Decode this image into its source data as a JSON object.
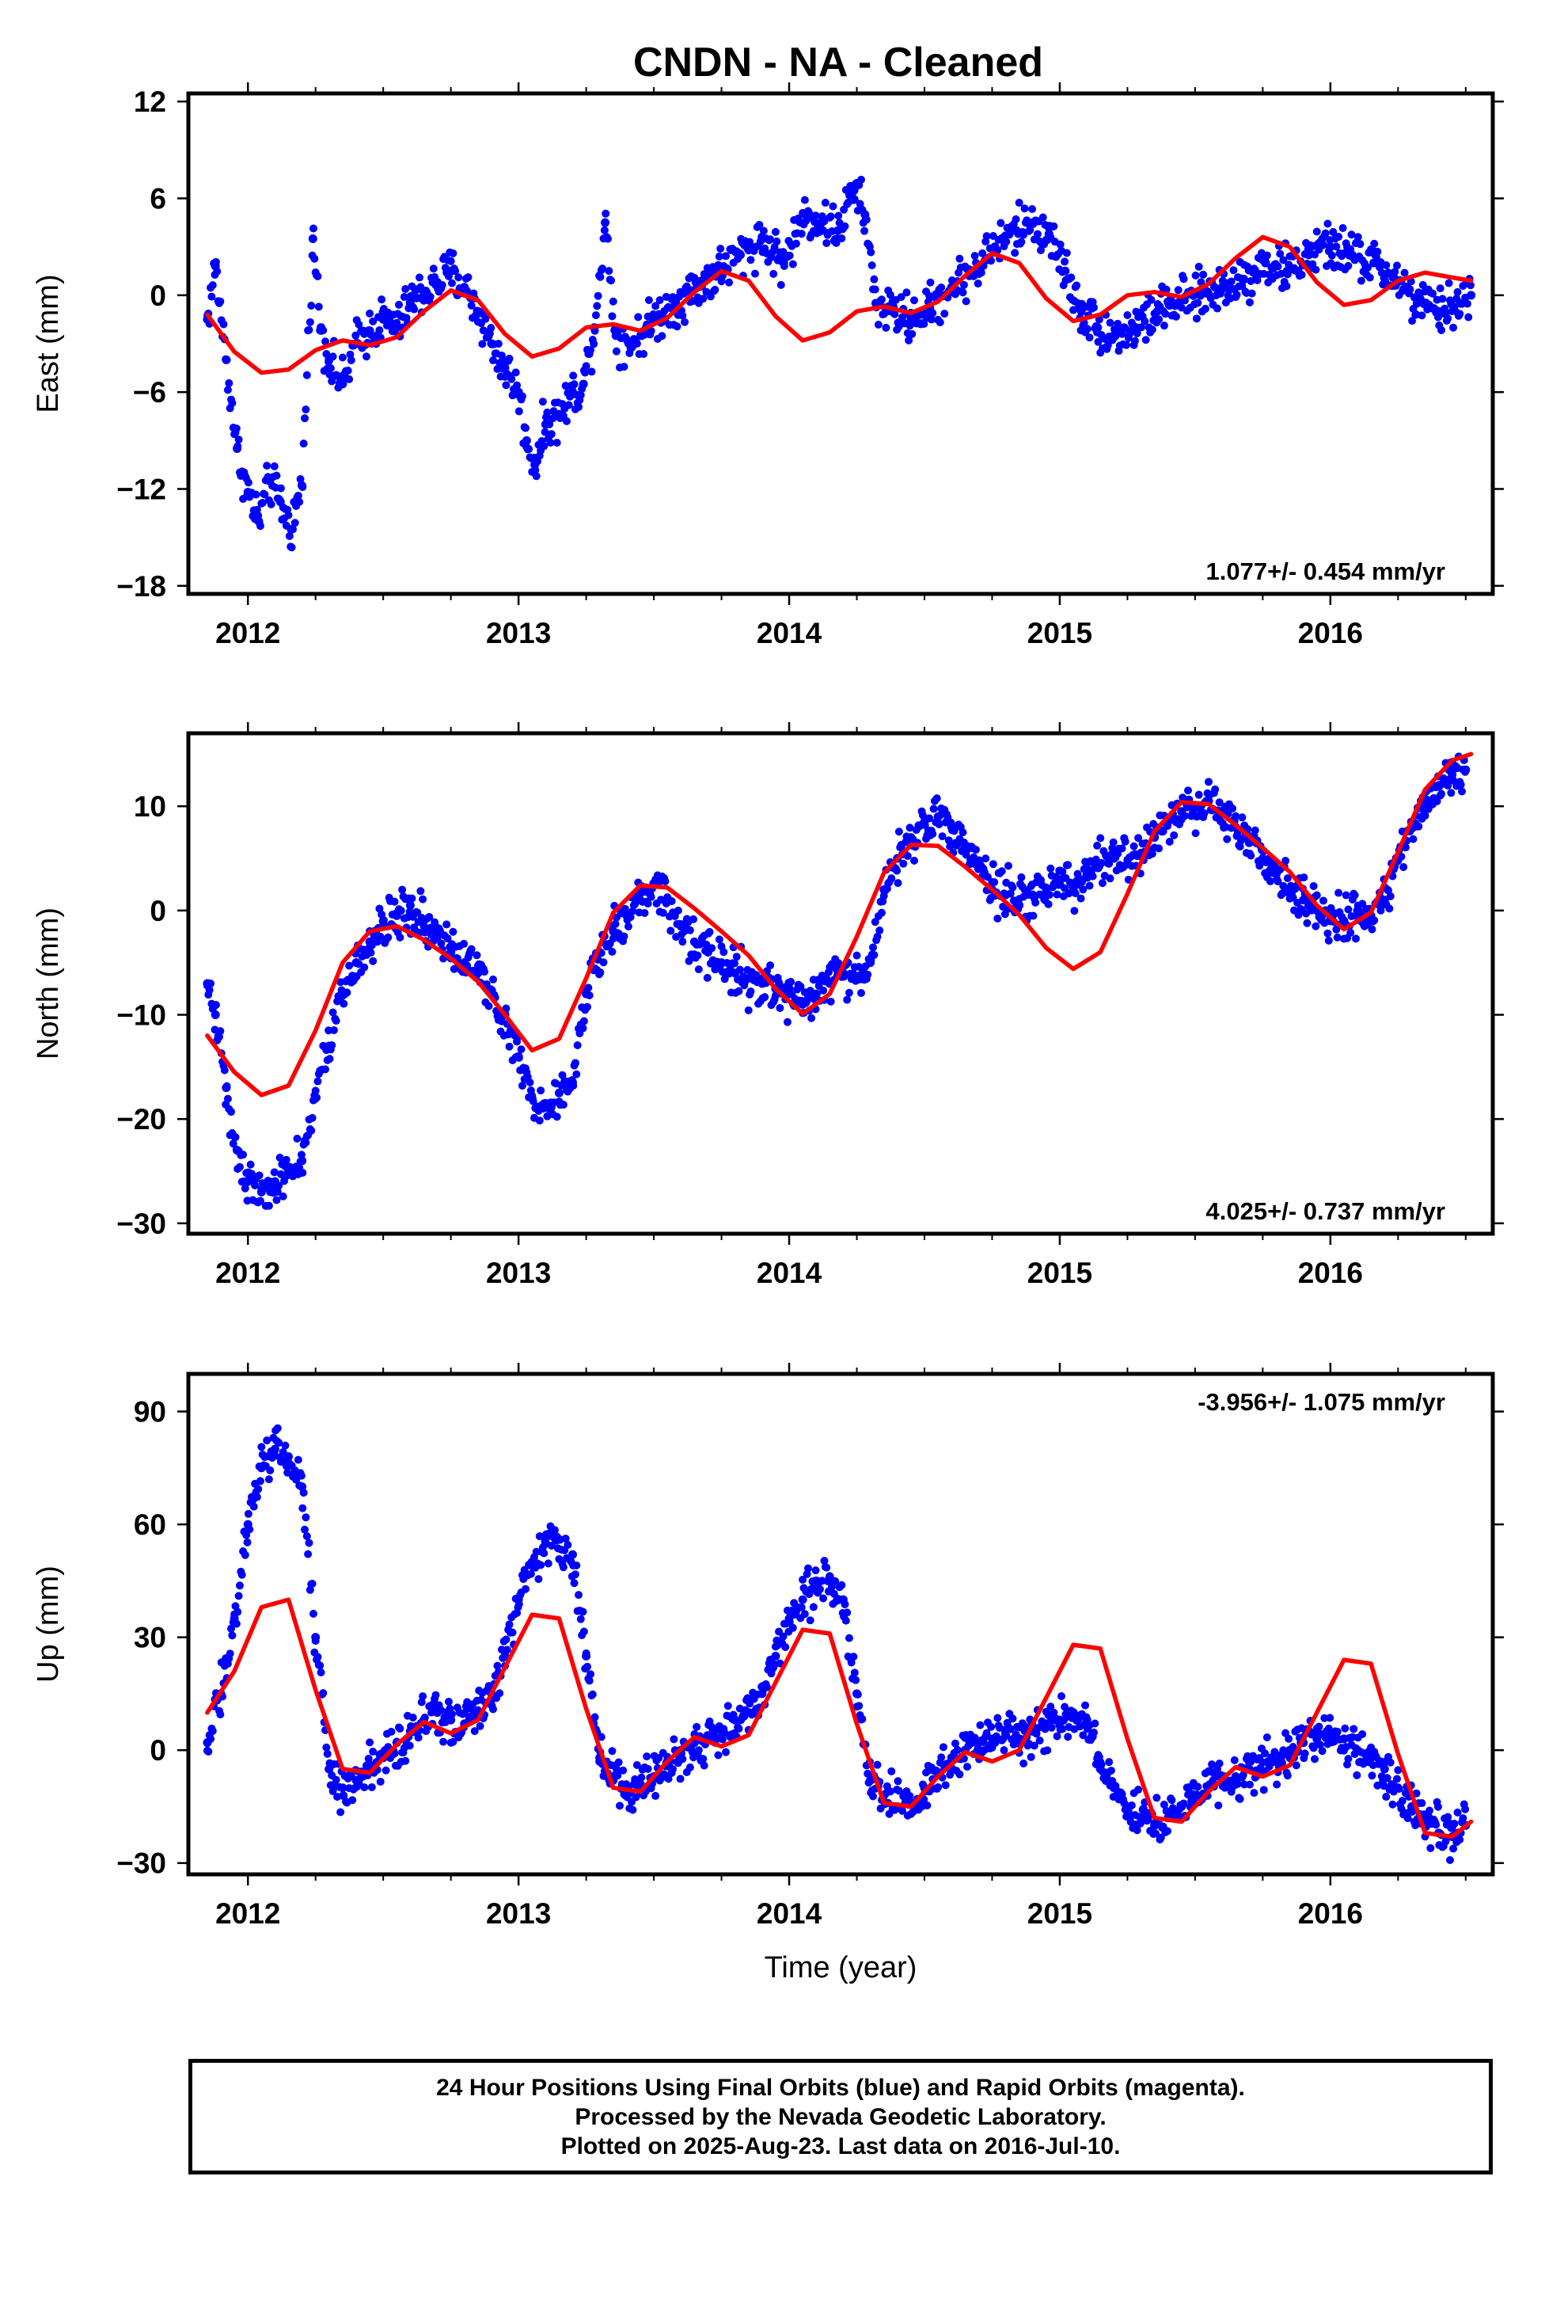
{
  "title": "CNDN  - NA - Cleaned",
  "footer": {
    "line1": "24 Hour Positions Using Final Orbits (blue) and Rapid Orbits (magenta).",
    "line2": "Processed by the Nevada Geodetic Laboratory.",
    "line3": "Plotted on 2025-Aug-23. Last data on 2016-Jul-10."
  },
  "colors": {
    "observations": "#0000ff",
    "model": "#ff0000",
    "frame": "#000000"
  },
  "chart_data": [
    {
      "type": "scatter",
      "component": "East",
      "ylabel": "East (mm)",
      "xlabel": "",
      "xlim": [
        2011.78,
        2016.6
      ],
      "ylim": [
        -18.5,
        12.5
      ],
      "xticks": [
        2012,
        2013,
        2014,
        2015,
        2016
      ],
      "xtick_labels": [
        "2012",
        "2013",
        "2014",
        "2015",
        "2016"
      ],
      "yticks": [
        -18,
        -12,
        -6,
        0,
        6,
        12
      ],
      "ytick_labels": [
        "−18",
        "−12",
        "−6",
        "0",
        "6",
        "12"
      ],
      "rate": "1.077+/- 0.454 mm/yr",
      "rate_position": "bottom-right",
      "series": [
        {
          "role": "observations",
          "style": "dots",
          "x": [
            2011.85,
            2011.88,
            2011.92,
            2011.96,
            2012.0,
            2012.04,
            2012.08,
            2012.12,
            2012.16,
            2012.2,
            2012.24,
            2012.27,
            2012.3,
            2012.35,
            2012.4,
            2012.45,
            2012.5,
            2012.55,
            2012.6,
            2012.65,
            2012.7,
            2012.75,
            2012.8,
            2012.85,
            2012.9,
            2012.95,
            2013.0,
            2013.03,
            2013.06,
            2013.1,
            2013.15,
            2013.2,
            2013.24,
            2013.28,
            2013.32,
            2013.36,
            2013.42,
            2013.5,
            2013.58,
            2013.66,
            2013.74,
            2013.82,
            2013.9,
            2013.98,
            2014.06,
            2014.12,
            2014.18,
            2014.24,
            2014.28,
            2014.32,
            2014.38,
            2014.45,
            2014.52,
            2014.6,
            2014.68,
            2014.76,
            2014.84,
            2014.9,
            2014.96,
            2015.02,
            2015.08,
            2015.14,
            2015.2,
            2015.28,
            2015.36,
            2015.44,
            2015.52,
            2015.6,
            2015.68,
            2015.76,
            2015.84,
            2015.92,
            2016.0,
            2016.08,
            2016.16,
            2016.24,
            2016.32,
            2016.4,
            2016.48,
            2016.52
          ],
          "y": [
            -1.5,
            1.8,
            -4.0,
            -9.5,
            -12.2,
            -14.0,
            -11.5,
            -12.8,
            -14.5,
            -11.8,
            3.5,
            -2.0,
            -4.0,
            -5.5,
            -3.0,
            -2.2,
            -1.5,
            -2.0,
            -0.5,
            0.2,
            0.8,
            1.5,
            0.5,
            -1.0,
            -3.0,
            -4.5,
            -6.0,
            -9.0,
            -10.5,
            -8.0,
            -7.5,
            -6.0,
            -5.5,
            -2.0,
            4.5,
            -2.5,
            -3.0,
            -1.5,
            -0.5,
            0.5,
            1.5,
            2.5,
            3.5,
            2.0,
            5.0,
            4.5,
            4.0,
            6.5,
            5.0,
            -0.5,
            -1.0,
            -1.5,
            -0.8,
            0.5,
            1.5,
            3.0,
            4.0,
            4.5,
            3.8,
            1.5,
            -1.0,
            -2.0,
            -2.5,
            -2.0,
            -1.0,
            -0.5,
            0.0,
            0.5,
            1.0,
            2.0,
            1.5,
            2.5,
            3.0,
            2.5,
            2.0,
            1.0,
            -0.5,
            -1.0,
            -0.5,
            0.0
          ]
        },
        {
          "role": "model",
          "style": "line",
          "x": [
            2011.85,
            2011.95,
            2012.05,
            2012.15,
            2012.25,
            2012.35,
            2012.45,
            2012.55,
            2012.65,
            2012.75,
            2012.85,
            2012.95,
            2013.05,
            2013.15,
            2013.25,
            2013.35,
            2013.45,
            2013.55,
            2013.65,
            2013.75,
            2013.85,
            2013.95,
            2014.05,
            2014.15,
            2014.25,
            2014.35,
            2014.45,
            2014.55,
            2014.65,
            2014.75,
            2014.85,
            2014.95,
            2015.05,
            2015.15,
            2015.25,
            2015.35,
            2015.45,
            2015.55,
            2015.65,
            2015.75,
            2015.85,
            2015.95,
            2016.05,
            2016.15,
            2016.25,
            2016.35,
            2016.45,
            2016.52
          ],
          "y": [
            -1.2,
            -3.5,
            -4.8,
            -4.6,
            -3.4,
            -2.8,
            -3.1,
            -2.6,
            -1.0,
            0.3,
            -0.3,
            -2.4,
            -3.8,
            -3.3,
            -2.0,
            -1.8,
            -2.2,
            -1.4,
            0.2,
            1.5,
            0.9,
            -1.3,
            -2.8,
            -2.3,
            -1.0,
            -0.7,
            -1.1,
            -0.4,
            1.2,
            2.6,
            2.0,
            -0.2,
            -1.6,
            -1.2,
            0.0,
            0.2,
            -0.1,
            0.7,
            2.3,
            3.6,
            3.0,
            0.8,
            -0.6,
            -0.3,
            0.9,
            1.4,
            1.1,
            0.9
          ]
        }
      ]
    },
    {
      "type": "scatter",
      "component": "North",
      "ylabel": "North (mm)",
      "xlabel": "",
      "xlim": [
        2011.78,
        2016.6
      ],
      "ylim": [
        -31,
        17
      ],
      "xticks": [
        2012,
        2013,
        2014,
        2015,
        2016
      ],
      "xtick_labels": [
        "2012",
        "2013",
        "2014",
        "2015",
        "2016"
      ],
      "yticks": [
        -30,
        -20,
        -10,
        0,
        10
      ],
      "ytick_labels": [
        "−30",
        "−20",
        "−10",
        "0",
        "10"
      ],
      "rate": "4.025+/- 0.737 mm/yr",
      "rate_position": "bottom-right",
      "series": [
        {
          "role": "observations",
          "style": "dots",
          "x": [
            2011.85,
            2011.88,
            2011.92,
            2011.96,
            2012.0,
            2012.05,
            2012.1,
            2012.15,
            2012.2,
            2012.25,
            2012.3,
            2012.35,
            2012.4,
            2012.45,
            2012.5,
            2012.55,
            2012.6,
            2012.65,
            2012.7,
            2012.75,
            2012.8,
            2012.85,
            2012.9,
            2012.95,
            2013.0,
            2013.05,
            2013.1,
            2013.15,
            2013.2,
            2013.25,
            2013.3,
            2013.35,
            2013.4,
            2013.45,
            2013.5,
            2013.55,
            2013.6,
            2013.65,
            2013.7,
            2013.75,
            2013.8,
            2013.85,
            2013.9,
            2013.95,
            2014.0,
            2014.05,
            2014.1,
            2014.15,
            2014.2,
            2014.25,
            2014.3,
            2014.35,
            2014.4,
            2014.45,
            2014.5,
            2014.55,
            2014.6,
            2014.65,
            2014.7,
            2014.75,
            2014.8,
            2014.85,
            2014.9,
            2014.95,
            2015.0,
            2015.05,
            2015.1,
            2015.15,
            2015.2,
            2015.25,
            2015.3,
            2015.35,
            2015.4,
            2015.45,
            2015.5,
            2015.55,
            2015.6,
            2015.65,
            2015.7,
            2015.75,
            2015.8,
            2015.85,
            2015.9,
            2015.95,
            2016.0,
            2016.05,
            2016.1,
            2016.15,
            2016.2,
            2016.25,
            2016.3,
            2016.35,
            2016.4,
            2016.45,
            2016.5
          ],
          "y": [
            -7.0,
            -10.0,
            -17.0,
            -23.0,
            -26.0,
            -27.0,
            -26.0,
            -25.0,
            -24.0,
            -18.0,
            -13.0,
            -8.0,
            -5.0,
            -3.0,
            -1.5,
            -0.5,
            0.5,
            -1.0,
            -2.5,
            -4.0,
            -5.0,
            -6.0,
            -8.0,
            -10.0,
            -14.0,
            -18.0,
            -18.5,
            -17.5,
            -16.5,
            -8.0,
            -4.0,
            -2.0,
            -0.5,
            1.0,
            2.5,
            1.0,
            -1.5,
            -3.0,
            -4.0,
            -5.0,
            -6.0,
            -6.5,
            -7.0,
            -7.5,
            -8.0,
            -9.0,
            -8.0,
            -7.0,
            -6.0,
            -6.5,
            -5.0,
            2.0,
            5.0,
            7.0,
            8.5,
            9.0,
            8.0,
            6.0,
            4.0,
            2.0,
            1.5,
            0.5,
            1.5,
            2.0,
            2.5,
            2.0,
            4.0,
            4.5,
            5.0,
            4.5,
            5.5,
            7.0,
            8.5,
            9.5,
            10.0,
            10.5,
            9.5,
            8.0,
            6.5,
            5.0,
            3.5,
            2.0,
            1.0,
            0.0,
            -1.0,
            -1.0,
            0.0,
            -0.5,
            1.0,
            5.0,
            8.0,
            10.0,
            12.0,
            13.0,
            13.5
          ]
        },
        {
          "role": "model",
          "style": "line",
          "x": [
            2011.85,
            2011.95,
            2012.05,
            2012.15,
            2012.25,
            2012.35,
            2012.45,
            2012.55,
            2012.65,
            2012.75,
            2012.85,
            2012.95,
            2013.05,
            2013.15,
            2013.25,
            2013.35,
            2013.45,
            2013.55,
            2013.65,
            2013.75,
            2013.85,
            2013.95,
            2014.05,
            2014.15,
            2014.25,
            2014.35,
            2014.45,
            2014.55,
            2014.65,
            2014.75,
            2014.85,
            2014.95,
            2015.05,
            2015.15,
            2015.25,
            2015.35,
            2015.45,
            2015.55,
            2015.65,
            2015.75,
            2015.85,
            2015.95,
            2016.05,
            2016.15,
            2016.25,
            2016.35,
            2016.45,
            2016.52
          ],
          "y": [
            -12.0,
            -15.5,
            -17.7,
            -16.8,
            -11.5,
            -5.0,
            -2.0,
            -1.5,
            -2.8,
            -4.6,
            -6.8,
            -10.0,
            -13.4,
            -12.3,
            -6.5,
            -0.2,
            2.4,
            2.2,
            0.2,
            -2.0,
            -4.3,
            -7.5,
            -9.9,
            -8.0,
            -2.5,
            3.6,
            6.3,
            6.2,
            4.2,
            2.0,
            -0.4,
            -3.6,
            -5.6,
            -4.0,
            1.6,
            7.6,
            10.4,
            10.2,
            8.2,
            6.0,
            3.7,
            0.5,
            -1.8,
            -0.2,
            5.6,
            11.6,
            14.4,
            15.0
          ]
        }
      ]
    },
    {
      "type": "scatter",
      "component": "Up",
      "ylabel": "Up (mm)",
      "xlabel": "Time (year)",
      "xlim": [
        2011.78,
        2016.6
      ],
      "ylim": [
        -33,
        100
      ],
      "xticks": [
        2012,
        2013,
        2014,
        2015,
        2016
      ],
      "xtick_labels": [
        "2012",
        "2013",
        "2014",
        "2015",
        "2016"
      ],
      "yticks": [
        -30,
        0,
        30,
        60,
        90
      ],
      "ytick_labels": [
        "−30",
        "0",
        "30",
        "60",
        "90"
      ],
      "rate": "-3.956+/- 1.075 mm/yr",
      "rate_position": "top-right",
      "series": [
        {
          "role": "observations",
          "style": "dots",
          "x": [
            2011.85,
            2011.9,
            2011.95,
            2012.0,
            2012.05,
            2012.1,
            2012.15,
            2012.2,
            2012.25,
            2012.3,
            2012.35,
            2012.4,
            2012.45,
            2012.5,
            2012.55,
            2012.6,
            2012.65,
            2012.7,
            2012.75,
            2012.8,
            2012.85,
            2012.9,
            2012.95,
            2013.0,
            2013.05,
            2013.1,
            2013.15,
            2013.2,
            2013.25,
            2013.3,
            2013.35,
            2013.4,
            2013.45,
            2013.5,
            2013.55,
            2013.6,
            2013.65,
            2013.7,
            2013.75,
            2013.8,
            2013.85,
            2013.9,
            2013.95,
            2014.0,
            2014.05,
            2014.1,
            2014.15,
            2014.2,
            2014.25,
            2014.3,
            2014.35,
            2014.4,
            2014.45,
            2014.5,
            2014.55,
            2014.6,
            2014.65,
            2014.7,
            2014.75,
            2014.8,
            2014.85,
            2014.9,
            2014.95,
            2015.0,
            2015.05,
            2015.1,
            2015.15,
            2015.2,
            2015.25,
            2015.3,
            2015.35,
            2015.4,
            2015.45,
            2015.5,
            2015.55,
            2015.6,
            2015.65,
            2015.7,
            2015.75,
            2015.8,
            2015.85,
            2015.9,
            2015.95,
            2016.0,
            2016.05,
            2016.1,
            2016.15,
            2016.2,
            2016.25,
            2016.3,
            2016.35,
            2016.4,
            2016.45,
            2016.5
          ],
          "y": [
            2.0,
            15.0,
            35.0,
            60.0,
            75.0,
            80.0,
            78.0,
            70.0,
            30.0,
            -5.0,
            -10.0,
            -8.0,
            -5.0,
            -2.0,
            2.0,
            5.0,
            8.0,
            10.0,
            8.0,
            7.0,
            10.0,
            15.0,
            25.0,
            40.0,
            50.0,
            55.0,
            56.0,
            52.0,
            25.0,
            -3.0,
            -8.0,
            -10.0,
            -9.0,
            -7.0,
            -3.0,
            0.0,
            2.0,
            3.0,
            5.0,
            8.0,
            10.0,
            15.0,
            25.0,
            35.0,
            40.0,
            45.0,
            46.0,
            40.0,
            15.0,
            -8.0,
            -12.0,
            -15.0,
            -14.0,
            -10.0,
            -6.0,
            -2.0,
            0.0,
            2.0,
            3.0,
            4.0,
            3.0,
            5.0,
            7.0,
            8.0,
            10.0,
            8.0,
            -5.0,
            -10.0,
            -15.0,
            -18.0,
            -20.0,
            -18.0,
            -15.0,
            -12.0,
            -10.0,
            -8.0,
            -7.0,
            -5.0,
            -6.0,
            -3.0,
            0.0,
            2.0,
            3.0,
            4.0,
            3.0,
            0.0,
            -2.0,
            -5.0,
            -10.0,
            -15.0,
            -20.0,
            -22.0,
            -23.0,
            -20.0
          ]
        },
        {
          "role": "model",
          "style": "line",
          "x": [
            2011.85,
            2011.95,
            2012.05,
            2012.15,
            2012.25,
            2012.35,
            2012.45,
            2012.55,
            2012.65,
            2012.75,
            2012.85,
            2012.95,
            2013.05,
            2013.15,
            2013.25,
            2013.35,
            2013.45,
            2013.55,
            2013.65,
            2013.75,
            2013.85,
            2013.95,
            2014.05,
            2014.15,
            2014.25,
            2014.35,
            2014.45,
            2014.55,
            2014.65,
            2014.75,
            2014.85,
            2014.95,
            2015.05,
            2015.15,
            2015.25,
            2015.35,
            2015.45,
            2015.55,
            2015.65,
            2015.75,
            2015.85,
            2015.95,
            2016.05,
            2016.15,
            2016.25,
            2016.35,
            2016.45,
            2016.52
          ],
          "y": [
            10.0,
            21.0,
            38.0,
            40.0,
            16.0,
            -5.0,
            -6.0,
            1.5,
            7.5,
            4.5,
            8.0,
            22.0,
            36.0,
            35.0,
            11.0,
            -10.0,
            -11.0,
            -3.0,
            3.5,
            1.0,
            4.0,
            18.0,
            32.0,
            31.0,
            7.0,
            -14.0,
            -15.0,
            -7.0,
            -0.5,
            -3.0,
            0.0,
            14.0,
            28.0,
            27.0,
            3.0,
            -18.0,
            -19.0,
            -11.0,
            -4.5,
            -7.0,
            -4.0,
            10.0,
            24.0,
            23.0,
            -1.0,
            -22.0,
            -23.0,
            -19.0
          ]
        }
      ]
    }
  ]
}
